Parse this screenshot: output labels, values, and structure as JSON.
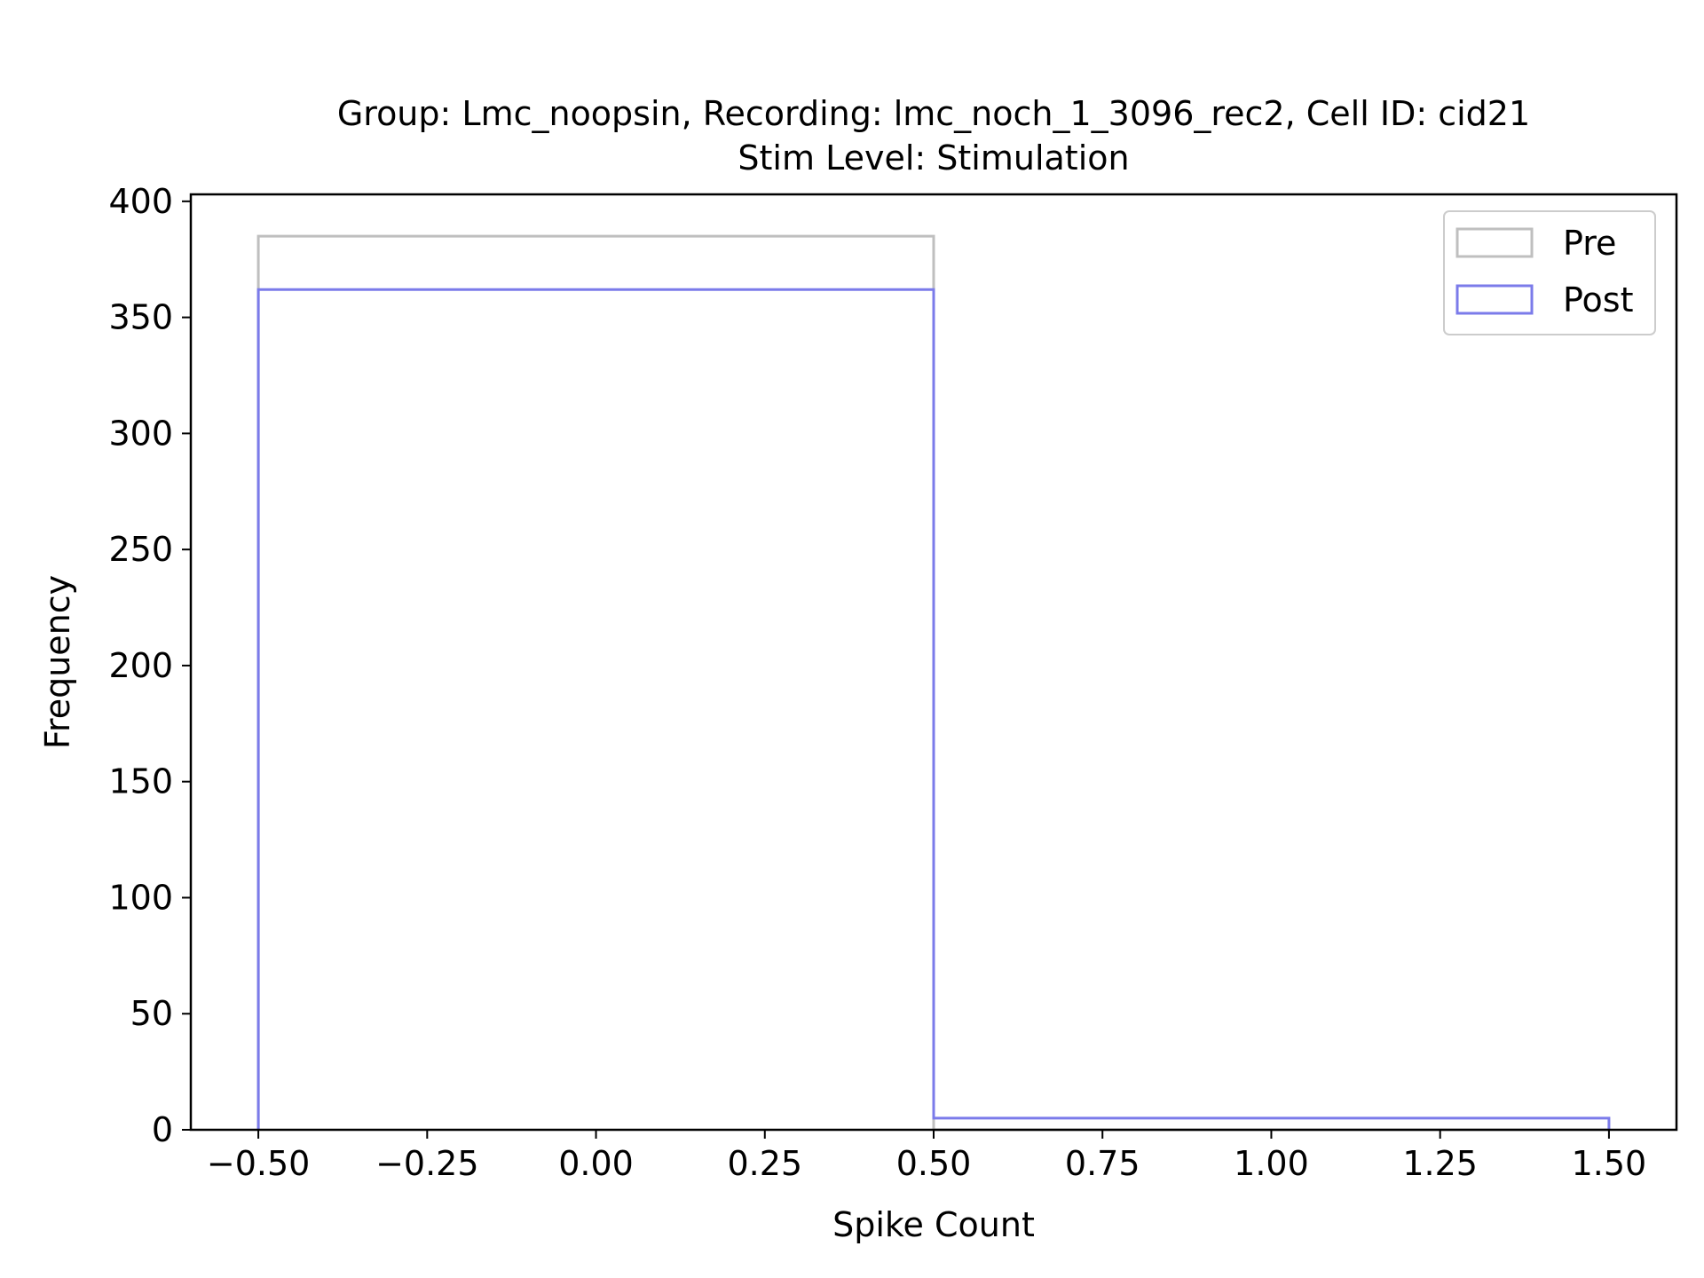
{
  "chart_data": {
    "type": "histogram",
    "title_line1": "Group: Lmc_noopsin, Recording: lmc_noch_1_3096_rec2, Cell ID: cid21",
    "title_line2": "Stim Level: Stimulation",
    "xlabel": "Spike Count",
    "ylabel": "Frequency",
    "xlim": [
      -0.6,
      1.6
    ],
    "ylim": [
      0,
      403
    ],
    "x_ticks": [
      -0.5,
      -0.25,
      0.0,
      0.25,
      0.5,
      0.75,
      1.0,
      1.25,
      1.5
    ],
    "x_tick_labels": [
      "−0.50",
      "−0.25",
      "0.00",
      "0.25",
      "0.50",
      "0.75",
      "1.00",
      "1.25",
      "1.50"
    ],
    "y_ticks": [
      0,
      50,
      100,
      150,
      200,
      250,
      300,
      350,
      400
    ],
    "y_tick_labels": [
      "0",
      "50",
      "100",
      "150",
      "200",
      "250",
      "300",
      "350",
      "400"
    ],
    "bin_edges": [
      -0.5,
      0.5,
      1.5
    ],
    "grid": false,
    "legend_position": "top-right",
    "series": [
      {
        "name": "Pre",
        "counts": [
          385,
          0
        ],
        "color": "#bfbfbf"
      },
      {
        "name": "Post",
        "counts": [
          362,
          5
        ],
        "color": "#7b7bea"
      }
    ]
  }
}
